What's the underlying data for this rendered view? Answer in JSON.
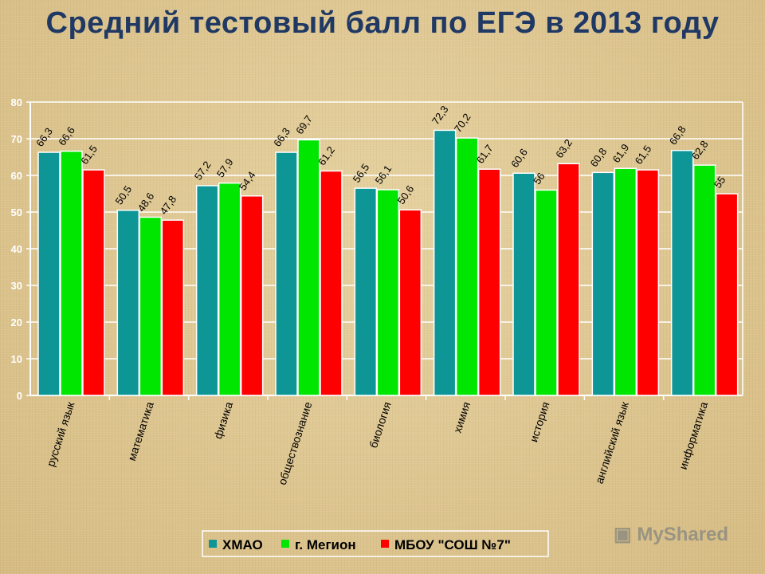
{
  "chart_data": {
    "type": "bar",
    "title": "Средний тестовый балл по ЕГЭ в 2013 году",
    "categories": [
      "русский язык",
      "математика",
      "физика",
      "обществознание",
      "биология",
      "химия",
      "история",
      "английский язык",
      "информатика"
    ],
    "series": [
      {
        "name": "ХМАО",
        "color": "#0e9696",
        "values": [
          66.3,
          50.5,
          57.2,
          66.3,
          56.5,
          72.3,
          60.6,
          60.8,
          66.8
        ],
        "labels": [
          "66,3",
          "50,5",
          "57,2",
          "66,3",
          "56,5",
          "72,3",
          "60,6",
          "60,8",
          "66,8"
        ]
      },
      {
        "name": "г. Мегион",
        "color": "#00e600",
        "values": [
          66.6,
          48.6,
          57.9,
          69.7,
          56.1,
          70.2,
          56,
          61.9,
          62.8
        ],
        "labels": [
          "66,6",
          "48,6",
          "57,9",
          "69,7",
          "56,1",
          "70,2",
          "56",
          "61,9",
          "62,8"
        ]
      },
      {
        "name": "МБОУ \"СОШ №7\"",
        "color": "#ff0000",
        "values": [
          61.5,
          47.8,
          54.4,
          61.2,
          50.6,
          61.7,
          63.2,
          61.5,
          55
        ],
        "labels": [
          "61,5",
          "47,8",
          "54,4",
          "61,2",
          "50,6",
          "61,7",
          "63,2",
          "61,5",
          "55"
        ]
      }
    ],
    "ylim": [
      0,
      80
    ],
    "yticks": [
      0,
      10,
      20,
      30,
      40,
      50,
      60,
      70,
      80
    ],
    "grid": true,
    "legend_position": "bottom"
  },
  "watermark": "MyShared"
}
